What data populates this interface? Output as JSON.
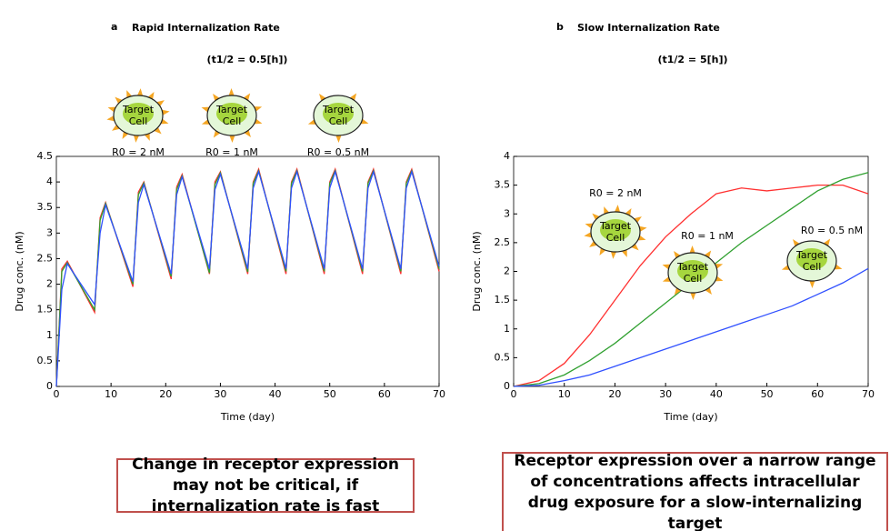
{
  "chart_data": [
    {
      "type": "line",
      "panel_label": "a",
      "title": "Rapid Internalization Rate",
      "subtitle": "(t1/2 = 0.5[h])",
      "x_label": "Time (day)",
      "y_label": "Drug conc. (nM)",
      "x": [
        0,
        1,
        2,
        7,
        8,
        9,
        14,
        15,
        16,
        21,
        22,
        23,
        28,
        29,
        30,
        35,
        36,
        37,
        42,
        43,
        44,
        49,
        50,
        51,
        56,
        57,
        58,
        63,
        64,
        65,
        70
      ],
      "series": [
        {
          "name": "R0 = 2 nM",
          "color": "#ff3030",
          "values": [
            0,
            2.3,
            2.45,
            1.45,
            3.3,
            3.6,
            1.95,
            3.8,
            4.0,
            2.1,
            3.9,
            4.15,
            2.2,
            4.0,
            4.2,
            2.2,
            4.0,
            4.25,
            2.2,
            4.0,
            4.25,
            2.2,
            4.0,
            4.25,
            2.2,
            4.0,
            4.25,
            2.2,
            4.0,
            4.25,
            2.25
          ]
        },
        {
          "name": "R0 = 1 nM",
          "color": "#30a030",
          "values": [
            0,
            2.25,
            2.42,
            1.5,
            3.25,
            3.58,
            2.0,
            3.75,
            3.98,
            2.15,
            3.85,
            4.12,
            2.22,
            3.95,
            4.18,
            2.24,
            3.97,
            4.22,
            2.25,
            3.97,
            4.22,
            2.25,
            3.97,
            4.22,
            2.25,
            3.97,
            4.22,
            2.25,
            3.97,
            4.22,
            2.3
          ]
        },
        {
          "name": "R0 = 0.5 nM",
          "color": "#3050ff",
          "values": [
            0,
            1.9,
            2.4,
            1.6,
            3.0,
            3.55,
            2.05,
            3.6,
            3.95,
            2.2,
            3.75,
            4.1,
            2.3,
            3.85,
            4.15,
            2.3,
            3.88,
            4.2,
            2.3,
            3.88,
            4.2,
            2.3,
            3.88,
            4.2,
            2.3,
            3.88,
            4.2,
            2.3,
            3.88,
            4.2,
            2.35
          ]
        }
      ],
      "xlim": [
        0,
        70
      ],
      "ylim": [
        0,
        4.5
      ],
      "xticks": [
        0,
        10,
        20,
        30,
        40,
        50,
        60,
        70
      ],
      "yticks": [
        0,
        0.5,
        1,
        1.5,
        2,
        2.5,
        3,
        3.5,
        4,
        4.5
      ],
      "cell_label": [
        "Target",
        "Cell"
      ],
      "caption": "Change in receptor expression may not be critical, if internalization rate is fast"
    },
    {
      "type": "line",
      "panel_label": "b",
      "title": "Slow Internalization Rate",
      "subtitle": "(t1/2 = 5[h])",
      "x_label": "Time (day)",
      "y_label": "Drug conc. (nM)",
      "x": [
        0,
        5,
        10,
        15,
        20,
        25,
        30,
        35,
        40,
        45,
        50,
        55,
        60,
        65,
        70
      ],
      "series": [
        {
          "name": "R0 = 2 nM",
          "color": "#ff3030",
          "values": [
            0,
            0.1,
            0.4,
            0.9,
            1.5,
            2.1,
            2.6,
            3.0,
            3.35,
            3.45,
            3.4,
            3.45,
            3.5,
            3.5,
            3.35
          ]
        },
        {
          "name": "R0 = 1 nM",
          "color": "#30a030",
          "values": [
            0,
            0.05,
            0.2,
            0.45,
            0.75,
            1.1,
            1.45,
            1.8,
            2.15,
            2.5,
            2.8,
            3.1,
            3.4,
            3.6,
            3.72
          ]
        },
        {
          "name": "R0 = 0.5 nM",
          "color": "#3050ff",
          "values": [
            0,
            0.02,
            0.1,
            0.2,
            0.35,
            0.5,
            0.65,
            0.8,
            0.95,
            1.1,
            1.25,
            1.4,
            1.6,
            1.8,
            2.05
          ]
        }
      ],
      "xlim": [
        0,
        70
      ],
      "ylim": [
        0,
        4
      ],
      "xticks": [
        0,
        10,
        20,
        30,
        40,
        50,
        60,
        70
      ],
      "yticks": [
        0,
        0.5,
        1,
        1.5,
        2,
        2.5,
        3,
        3.5,
        4
      ],
      "cell_label": [
        "Target",
        "Cell"
      ],
      "caption": "Receptor expression over a narrow range of concentrations affects intracellular drug exposure for a slow-internalizing target"
    }
  ]
}
